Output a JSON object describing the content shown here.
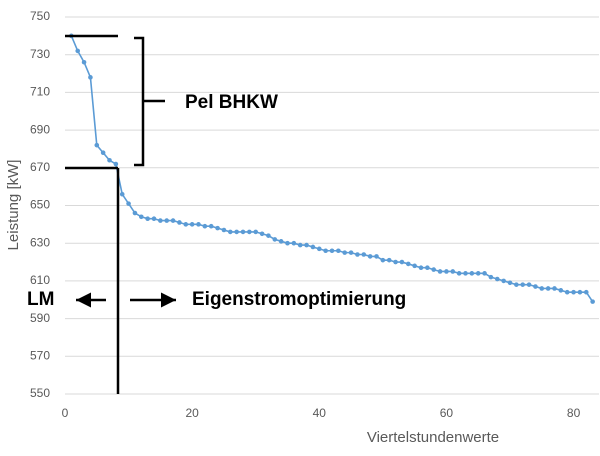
{
  "chart_data": {
    "type": "line",
    "x_label": "Viertelstundenwerte",
    "y_label": "Leistung [kW]",
    "annotations": [
      "Pel BHKW",
      "LM",
      "Eigenstromoptimierung"
    ],
    "x": [
      1,
      2,
      3,
      4,
      5,
      6,
      7,
      8,
      9,
      10,
      11,
      12,
      13,
      14,
      15,
      16,
      17,
      18,
      19,
      20,
      21,
      22,
      23,
      24,
      25,
      26,
      27,
      28,
      29,
      30,
      31,
      32,
      33,
      34,
      35,
      36,
      37,
      38,
      39,
      40,
      41,
      42,
      43,
      44,
      45,
      46,
      47,
      48,
      49,
      50,
      51,
      52,
      53,
      54,
      55,
      56,
      57,
      58,
      59,
      60,
      61,
      62,
      63,
      64,
      65,
      66,
      67,
      68,
      69,
      70,
      71,
      72,
      73,
      74,
      75,
      76,
      77,
      78,
      79,
      80,
      81,
      82,
      83
    ],
    "values": [
      740,
      732,
      726,
      718,
      682,
      678,
      674,
      672,
      656,
      651,
      646,
      644,
      643,
      643,
      642,
      642,
      642,
      641,
      640,
      640,
      640,
      639,
      639,
      638,
      637,
      636,
      636,
      636,
      636,
      636,
      635,
      634,
      632,
      631,
      630,
      630,
      629,
      629,
      628,
      627,
      626,
      626,
      626,
      625,
      625,
      624,
      624,
      623,
      623,
      621,
      621,
      620,
      620,
      619,
      618,
      617,
      617,
      616,
      615,
      615,
      615,
      614,
      614,
      614,
      614,
      614,
      612,
      611,
      610,
      609,
      608,
      608,
      608,
      607,
      606,
      606,
      606,
      605,
      604,
      604,
      604,
      604,
      599
    ],
    "color": "#5b9bd5",
    "xlim": [
      0,
      84
    ],
    "xticks": [
      0,
      20,
      40,
      60,
      80
    ],
    "ylim": [
      550,
      750
    ],
    "yticks": [
      550,
      570,
      590,
      610,
      630,
      650,
      670,
      690,
      710,
      730,
      750
    ],
    "grid": true
  }
}
